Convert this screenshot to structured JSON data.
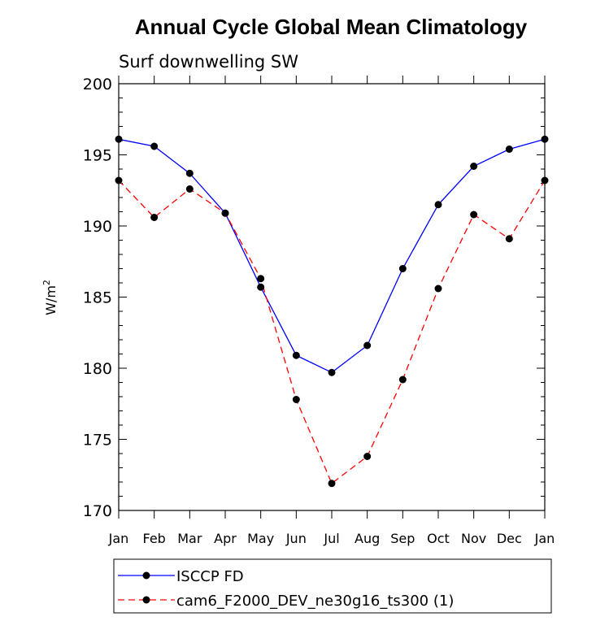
{
  "chart_data": {
    "type": "line",
    "title": "Annual Cycle Global Mean Climatology",
    "subtitle": "Surf downwelling SW",
    "xlabel": "",
    "ylabel": "W/m",
    "ylabel_superscript": "2",
    "ylim": [
      170,
      200
    ],
    "yticks": [
      170,
      175,
      180,
      185,
      190,
      195,
      200
    ],
    "categories": [
      "Jan",
      "Feb",
      "Mar",
      "Apr",
      "May",
      "Jun",
      "Jul",
      "Aug",
      "Sep",
      "Oct",
      "Nov",
      "Dec",
      "Jan"
    ],
    "grid": false,
    "legend_position": "bottom",
    "series": [
      {
        "name": "ISCCP FD",
        "color": "#0000ff",
        "line_style": "solid",
        "marker": "filled-circle",
        "values": [
          196.1,
          195.6,
          193.7,
          190.9,
          185.7,
          180.9,
          179.7,
          181.6,
          187.0,
          191.5,
          194.2,
          195.4,
          196.1
        ]
      },
      {
        "name": "cam6_F2000_DEV_ne30g16_ts300 (1)",
        "color": "#ff0000",
        "line_style": "dashed",
        "marker": "filled-circle",
        "values": [
          193.2,
          190.6,
          192.6,
          190.9,
          186.3,
          177.8,
          171.9,
          173.8,
          179.2,
          185.6,
          190.8,
          189.1,
          193.2
        ]
      }
    ]
  }
}
